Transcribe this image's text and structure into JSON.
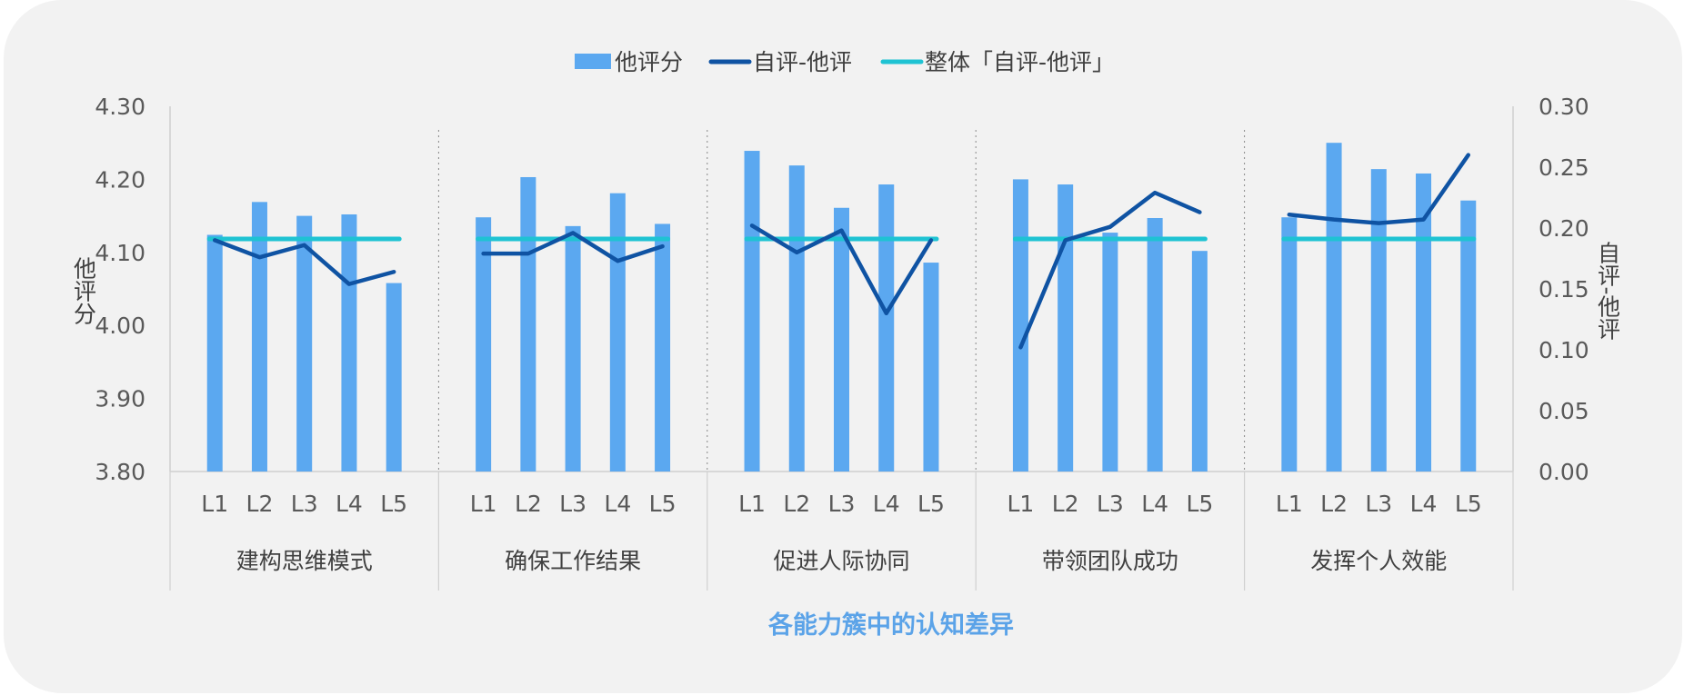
{
  "chart_data": {
    "type": "bar+line",
    "title": "",
    "xlabel": "各能力簇中的认知差异",
    "ylabel_left": "他评分",
    "ylabel_right": "自评-他评",
    "ylim_left": [
      3.8,
      4.3
    ],
    "ylim_right": [
      0.0,
      0.3
    ],
    "yticks_left": [
      "4.30",
      "4.20",
      "4.10",
      "4.00",
      "3.90",
      "3.80"
    ],
    "yticks_right": [
      "0.30",
      "0.25",
      "0.20",
      "0.15",
      "0.10",
      "0.05",
      "0.00"
    ],
    "legend": [
      "他评分",
      "自评-他评",
      "整体「自评-他评」"
    ],
    "legend_position": "top",
    "levels": [
      "L1",
      "L2",
      "L3",
      "L4",
      "L5"
    ],
    "groups": [
      "建构思维模式",
      "确保工作结果",
      "促进人际协同",
      "带领团队成功",
      "发挥个人效能"
    ],
    "series": [
      {
        "name": "他评分",
        "type": "bar",
        "axis": "left",
        "color": "#5ba8f0",
        "values": [
          [
            4.124,
            4.169,
            4.15,
            4.152,
            4.058
          ],
          [
            4.148,
            4.203,
            4.136,
            4.181,
            4.139
          ],
          [
            4.239,
            4.219,
            4.161,
            4.193,
            4.086
          ],
          [
            4.2,
            4.193,
            4.127,
            4.147,
            4.102
          ],
          [
            4.148,
            4.25,
            4.214,
            4.208,
            4.171
          ]
        ]
      },
      {
        "name": "自评-他评",
        "type": "line",
        "axis": "right",
        "color": "#0f53a3",
        "values": [
          [
            0.19,
            0.176,
            0.186,
            0.154,
            0.164
          ],
          [
            0.179,
            0.179,
            0.196,
            0.173,
            0.185
          ],
          [
            0.202,
            0.18,
            0.198,
            0.13,
            0.19
          ],
          [
            0.102,
            0.19,
            0.201,
            0.229,
            0.213
          ],
          [
            0.211,
            0.207,
            0.204,
            0.207,
            0.26
          ]
        ]
      },
      {
        "name": "整体「自评-他评」",
        "type": "line",
        "axis": "right",
        "color": "#1fc3d3",
        "value": 0.191
      }
    ]
  }
}
